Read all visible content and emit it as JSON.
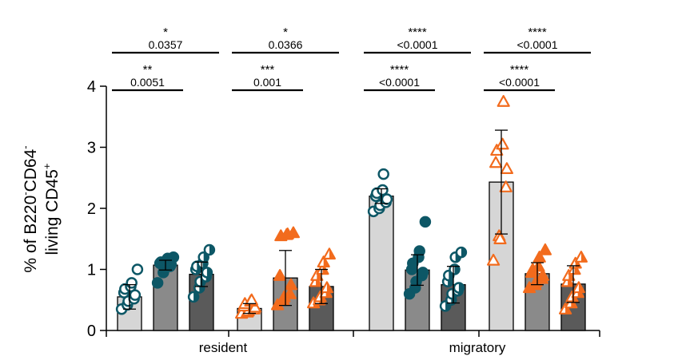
{
  "chart_data": {
    "type": "bar",
    "ylabel_parts": [
      "% of B220",
      "-",
      "CD64",
      "-"
    ],
    "ylabel_line2_parts": [
      "living CD45",
      "+"
    ],
    "ylim": [
      0,
      4
    ],
    "yticks": [
      0,
      1,
      2,
      3,
      4
    ],
    "ytick_labels": [
      "0",
      "1",
      "2",
      "3",
      "4"
    ],
    "groups": [
      "resident",
      "migratory"
    ],
    "colors": {
      "teal": "#0d5766",
      "orange": "#f26b1d",
      "bar_light": "#d6d6d6",
      "bar_mid": "#8a8a8a",
      "bar_dark": "#5a5a5a"
    },
    "bars": [
      {
        "group": "resident",
        "value": 0.55,
        "error": 0.2,
        "fill": "light",
        "marker": "circle-open",
        "color": "teal",
        "points": [
          0.35,
          0.42,
          0.48,
          0.52,
          0.58,
          0.62,
          0.68,
          0.72,
          0.78,
          1.0
        ]
      },
      {
        "group": "resident",
        "value": 1.07,
        "error": 0.08,
        "fill": "mid",
        "marker": "circle-filled",
        "color": "teal",
        "points": [
          0.78,
          0.95,
          1.0,
          1.05,
          1.08,
          1.1,
          1.12,
          1.15,
          1.18,
          1.2
        ]
      },
      {
        "group": "resident",
        "value": 0.92,
        "error": 0.2,
        "fill": "dark",
        "marker": "circle-half",
        "color": "teal",
        "points": [
          0.55,
          0.7,
          0.8,
          0.88,
          0.95,
          1.0,
          1.05,
          1.1,
          1.2,
          1.32
        ]
      },
      {
        "group": "resident",
        "value": 0.36,
        "error": 0.08,
        "fill": "light",
        "marker": "triangle-open",
        "color": "orange",
        "points": [
          0.28,
          0.3,
          0.32,
          0.35,
          0.38,
          0.4,
          0.44,
          0.48,
          0.5
        ]
      },
      {
        "group": "resident",
        "value": 0.86,
        "error": 0.45,
        "fill": "mid",
        "marker": "triangle-filled",
        "color": "orange",
        "points": [
          0.42,
          0.5,
          0.55,
          0.6,
          0.75,
          0.9,
          1.55,
          1.57,
          1.58,
          1.6
        ]
      },
      {
        "group": "resident",
        "value": 0.72,
        "error": 0.28,
        "fill": "dark",
        "marker": "triangle-half",
        "color": "orange",
        "points": [
          0.45,
          0.5,
          0.55,
          0.62,
          0.7,
          0.8,
          0.9,
          1.0,
          1.12,
          1.25
        ]
      },
      {
        "group": "migratory",
        "value": 2.2,
        "error": 0.12,
        "fill": "light",
        "marker": "circle-open",
        "color": "teal",
        "points": [
          1.95,
          2.0,
          2.05,
          2.1,
          2.15,
          2.2,
          2.25,
          2.3,
          2.56
        ]
      },
      {
        "group": "migratory",
        "value": 0.99,
        "error": 0.25,
        "fill": "mid",
        "marker": "circle-filled",
        "color": "teal",
        "points": [
          0.6,
          0.7,
          0.8,
          0.9,
          0.95,
          1.0,
          1.1,
          1.2,
          1.3,
          1.78
        ]
      },
      {
        "group": "migratory",
        "value": 0.75,
        "error": 0.3,
        "fill": "dark",
        "marker": "circle-half",
        "color": "teal",
        "points": [
          0.4,
          0.5,
          0.6,
          0.65,
          0.7,
          0.8,
          0.9,
          1.0,
          1.2,
          1.28
        ]
      },
      {
        "group": "migratory",
        "value": 2.43,
        "error": 0.85,
        "fill": "light",
        "marker": "triangle-open",
        "color": "orange",
        "points": [
          1.15,
          1.55,
          1.5,
          2.35,
          2.65,
          2.75,
          2.95,
          3.05,
          3.75
        ]
      },
      {
        "group": "migratory",
        "value": 0.93,
        "error": 0.18,
        "fill": "mid",
        "marker": "triangle-filled",
        "color": "orange",
        "points": [
          0.7,
          0.75,
          0.8,
          0.85,
          0.9,
          0.95,
          1.0,
          1.05,
          1.2,
          1.32
        ]
      },
      {
        "group": "migratory",
        "value": 0.76,
        "error": 0.3,
        "fill": "dark",
        "marker": "triangle-half",
        "color": "orange",
        "points": [
          0.35,
          0.45,
          0.55,
          0.62,
          0.7,
          0.8,
          0.9,
          1.0,
          1.1,
          1.2
        ]
      }
    ],
    "significance": [
      {
        "from": 0,
        "to": 2,
        "level": 2,
        "stars": "*",
        "p": "0.0357"
      },
      {
        "from": 3,
        "to": 5,
        "level": 2,
        "stars": "*",
        "p": "0.0366"
      },
      {
        "from": 6,
        "to": 8,
        "level": 2,
        "stars": "****",
        "p": "<0.0001"
      },
      {
        "from": 9,
        "to": 11,
        "level": 2,
        "stars": "****",
        "p": "<0.0001"
      },
      {
        "from": 0,
        "to": 1,
        "level": 1,
        "stars": "**",
        "p": "0.0051"
      },
      {
        "from": 3,
        "to": 4,
        "level": 1,
        "stars": "***",
        "p": "0.001"
      },
      {
        "from": 6,
        "to": 7,
        "level": 1,
        "stars": "****",
        "p": "<0.0001"
      },
      {
        "from": 9,
        "to": 10,
        "level": 1,
        "stars": "****",
        "p": "<0.0001"
      }
    ]
  }
}
